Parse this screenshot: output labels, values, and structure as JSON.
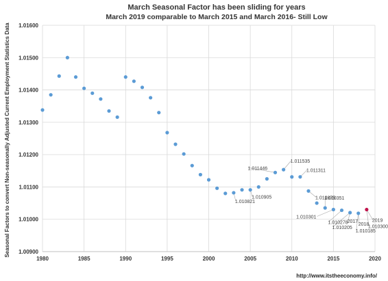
{
  "chart_data": {
    "type": "scatter",
    "title": "March Seasonal Factor has been sliding for years",
    "subtitle": "March 2019 comparable to March 2015 and March 2016- Still Low",
    "xlabel": "",
    "ylabel": "Seasonal Factors to convert Non-seasonally Adjusted Current Employment Statistics Data",
    "xlim": [
      1980,
      2020
    ],
    "ylim": [
      1.009,
      1.016
    ],
    "x_ticks": [
      "1980",
      "1985",
      "1990",
      "1995",
      "2000",
      "2005",
      "2010",
      "2015",
      "2020"
    ],
    "y_ticks": [
      "1.00900",
      "1.01000",
      "1.01100",
      "1.01200",
      "1.01300",
      "1.01400",
      "1.01500",
      "1.01600"
    ],
    "grid": true,
    "legend": "none",
    "colors": {
      "points": "#5b9bd5",
      "highlight": "#c0144c",
      "grid": "#d9d9d9"
    },
    "highlight_year": 2019,
    "x": [
      1980,
      1981,
      1982,
      1983,
      1984,
      1985,
      1986,
      1987,
      1988,
      1989,
      1990,
      1991,
      1992,
      1993,
      1994,
      1995,
      1996,
      1997,
      1998,
      1999,
      2000,
      2001,
      2002,
      2003,
      2004,
      2005,
      2006,
      2007,
      2008,
      2009,
      2010,
      2011,
      2012,
      2013,
      2014,
      2015,
      2016,
      2017,
      2018,
      2019
    ],
    "y": [
      1.01338,
      1.01385,
      1.01443,
      1.015,
      1.0144,
      1.01405,
      1.0139,
      1.01372,
      1.01335,
      1.01316,
      1.0144,
      1.01427,
      1.01408,
      1.01376,
      1.0133,
      1.01268,
      1.01232,
      1.01202,
      1.01166,
      1.01138,
      1.01122,
      1.01096,
      1.0108,
      1.01082,
      1.01091,
      1.01091,
      1.011,
      1.01125,
      1.011446,
      1.011535,
      1.01131,
      1.011311,
      1.010875,
      1.0105,
      1.010351,
      1.010301,
      1.010278,
      1.010205,
      1.010185,
      1.0103
    ],
    "annotations": [
      {
        "text": "1.010821",
        "year": 2003
      },
      {
        "text": "1.010905",
        "year": 2005
      },
      {
        "text": "1.011446",
        "year": 2008
      },
      {
        "text": "1.011535",
        "year": 2009
      },
      {
        "text": "1.011311",
        "year": 2011
      },
      {
        "text": "1.010875",
        "year": 2012
      },
      {
        "text": "1.010351",
        "year": 2014
      },
      {
        "text": "1.010301",
        "year": 2015
      },
      {
        "text": "1.010278",
        "year": 2016
      },
      {
        "text": "2017",
        "year": 2017
      },
      {
        "text": "1.010205",
        "year": 2017
      },
      {
        "text": "2018",
        "year": 2018
      },
      {
        "text": "1.010185",
        "year": 2018
      },
      {
        "text": "2019",
        "year": 2019
      },
      {
        "text": "1.010300",
        "year": 2019
      }
    ]
  },
  "credit": "http://www.itstheeconomy.info/"
}
